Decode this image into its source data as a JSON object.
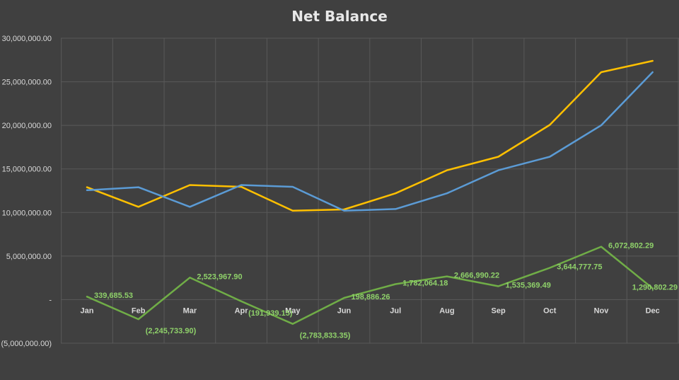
{
  "chart_data": {
    "type": "line",
    "title": "Net Balance",
    "xlabel": "",
    "ylabel": "",
    "categories": [
      "Jan",
      "Feb",
      "Mar",
      "Apr",
      "May",
      "Jun",
      "Jul",
      "Aug",
      "Sep",
      "Oct",
      "Nov",
      "Dec"
    ],
    "ylim": [
      -5000000,
      30000000
    ],
    "ytick_values": [
      -5000000,
      0,
      5000000,
      10000000,
      15000000,
      20000000,
      25000000,
      30000000
    ],
    "ytick_labels": [
      "(5,000,000.00)",
      "-",
      "5,000,000.00",
      "10,000,000.00",
      "15,000,000.00",
      "20,000,000.00",
      "25,000,000.00",
      "30,000,000.00"
    ],
    "grid": true,
    "legend": "none",
    "series": [
      {
        "color": "#ffc000",
        "values": [
          12900000,
          10650000,
          13150000,
          12950000,
          10200000,
          10350000,
          12200000,
          14850000,
          16400000,
          20050000,
          26100000,
          27400000
        ],
        "labels": []
      },
      {
        "color": "#5b9bd5",
        "values": [
          12560000,
          12900000,
          10650000,
          13150000,
          12950000,
          10200000,
          10400000,
          12200000,
          14850000,
          16400000,
          20000000,
          26100000
        ],
        "labels": []
      },
      {
        "color": "#70ad47",
        "values": [
          339685.53,
          -2245733.9,
          2523967.9,
          -191939.15,
          -2783833.35,
          198886.26,
          1782064.18,
          2666990.22,
          1535369.49,
          3644777.75,
          6072802.29,
          1290802.29
        ],
        "labels": [
          "339,685.53",
          "(2,245,733.90)",
          "2,523,967.90",
          "(191,939.15)",
          "(2,783,833.35)",
          "198,886.26",
          "1,782,064.18",
          "2,666,990.22",
          "1,535,369.49",
          "3,644,777.75",
          "6,072,802.29",
          "1,290,802.29"
        ],
        "label_color": "#8fd16a"
      }
    ]
  }
}
